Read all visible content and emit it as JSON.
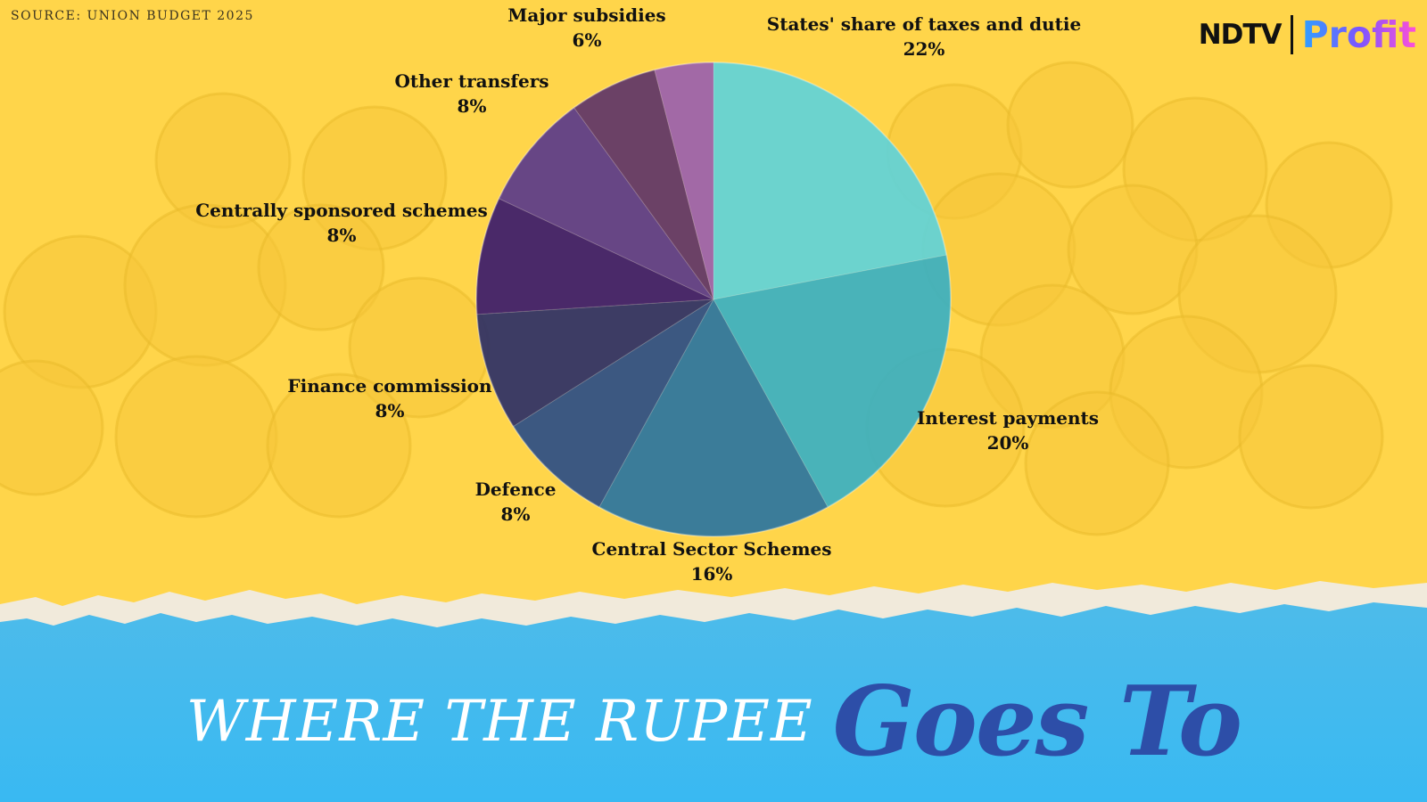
{
  "source": "SOURCE: UNION BUDGET 2025",
  "logo": {
    "left": "NDTV",
    "right": "Profit"
  },
  "headline": {
    "part1": "WHERE THE RUPEE",
    "part2": "Goes To"
  },
  "colors": {
    "background": "#ffd54a",
    "banner": "#3fb8ef",
    "headline_accent": "#2d4ea8"
  },
  "chart_data": {
    "type": "pie",
    "title": "",
    "unit": "%",
    "slices": [
      {
        "label": "States' share of taxes and dutie",
        "value": 22,
        "value_label": "22%",
        "color": "#5fd3d9"
      },
      {
        "label": "Interest payments",
        "value": 20,
        "value_label": "20%",
        "color": "#3ab0c2"
      },
      {
        "label": "Central Sector Schemes",
        "value": 16,
        "value_label": "16%",
        "color": "#2a74a0"
      },
      {
        "label": "Defence",
        "value": 8,
        "value_label": "8%",
        "color": "#2b4d86"
      },
      {
        "label": "Finance commission",
        "value": 8,
        "value_label": "8%",
        "color": "#2d2f66"
      },
      {
        "label": "Centrally sponsored schemes",
        "value": 8,
        "value_label": "8%",
        "color": "#3b1a6b"
      },
      {
        "label": "Other transfers",
        "value": 8,
        "value_label": "8%",
        "color": "#5a3a8a"
      },
      {
        "label": "Major subsidies",
        "value": 6,
        "value_label": "6%",
        "color": "#5e3468"
      },
      {
        "label": "",
        "value": 4,
        "value_label": "",
        "color": "#9a5fae"
      }
    ]
  }
}
